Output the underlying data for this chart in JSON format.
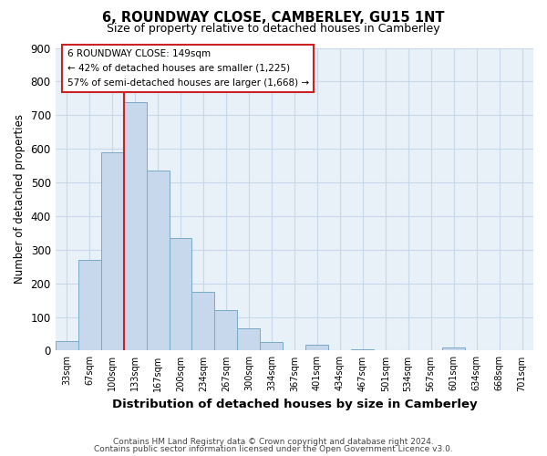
{
  "title": "6, ROUNDWAY CLOSE, CAMBERLEY, GU15 1NT",
  "subtitle": "Size of property relative to detached houses in Camberley",
  "xlabel": "Distribution of detached houses by size in Camberley",
  "ylabel": "Number of detached properties",
  "footnote1": "Contains HM Land Registry data © Crown copyright and database right 2024.",
  "footnote2": "Contains public sector information licensed under the Open Government Licence v3.0.",
  "bar_labels": [
    "33sqm",
    "67sqm",
    "100sqm",
    "133sqm",
    "167sqm",
    "200sqm",
    "234sqm",
    "267sqm",
    "300sqm",
    "334sqm",
    "367sqm",
    "401sqm",
    "434sqm",
    "467sqm",
    "501sqm",
    "534sqm",
    "567sqm",
    "601sqm",
    "634sqm",
    "668sqm",
    "701sqm"
  ],
  "bar_values": [
    27,
    270,
    590,
    740,
    535,
    335,
    175,
    120,
    65,
    25,
    0,
    18,
    0,
    5,
    0,
    0,
    0,
    8,
    0,
    0,
    0
  ],
  "bar_color": "#c8d8ec",
  "bar_edgecolor": "#7aaac8",
  "red_line_index": 3,
  "ylim": [
    0,
    900
  ],
  "yticks": [
    0,
    100,
    200,
    300,
    400,
    500,
    600,
    700,
    800,
    900
  ],
  "annotation_line1": "6 ROUNDWAY CLOSE: 149sqm",
  "annotation_line2": "← 42% of detached houses are smaller (1,225)",
  "annotation_line3": "57% of semi-detached houses are larger (1,668) →",
  "grid_color": "#c8d8ec",
  "background_color": "#e8f0f8"
}
